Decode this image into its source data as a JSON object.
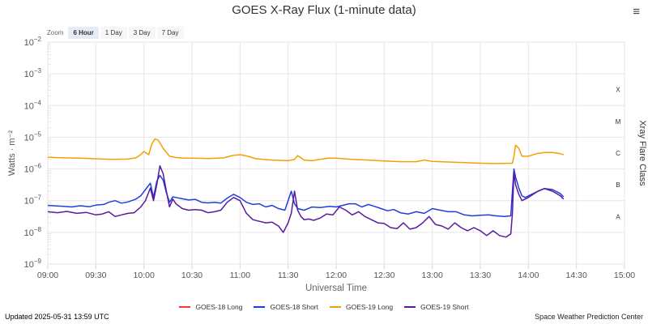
{
  "menu_icon": "≡",
  "zoom": {
    "label": "Zoom",
    "buttons": [
      "6 Hour",
      "1 Day",
      "3 Day",
      "7 Day"
    ],
    "active": "6 Hour"
  },
  "footer": {
    "updated": "Updated 2025-05-31 13:59 UTC",
    "credit": "Space Weather Prediction Center"
  },
  "chart_data": {
    "type": "line",
    "title": "GOES X-Ray Flux (1-minute data)",
    "xlabel": "Universal Time",
    "ylabel": "Watts · m⁻²",
    "y2label": "Xray Flare Class",
    "yscale": "log",
    "ylim_exp": [
      -9,
      -2
    ],
    "y_ticks": [
      {
        "exp": -2,
        "base": "10",
        "sup": "−2"
      },
      {
        "exp": -3,
        "base": "10",
        "sup": "−3"
      },
      {
        "exp": -4,
        "base": "10",
        "sup": "−4"
      },
      {
        "exp": -5,
        "base": "10",
        "sup": "−5"
      },
      {
        "exp": -6,
        "base": "10",
        "sup": "−6"
      },
      {
        "exp": -7,
        "base": "10",
        "sup": "−7"
      },
      {
        "exp": -8,
        "base": "10",
        "sup": "−8"
      },
      {
        "exp": -9,
        "base": "10",
        "sup": "−9"
      }
    ],
    "x_ticks": [
      "09:00",
      "09:30",
      "10:00",
      "10:30",
      "11:00",
      "11:30",
      "12:00",
      "12:30",
      "13:00",
      "13:30",
      "14:00",
      "14:30",
      "15:00"
    ],
    "xlim_minutes": [
      540,
      900
    ],
    "flare_classes": [
      {
        "label": "X",
        "exp": -3.5
      },
      {
        "label": "M",
        "exp": -4.5
      },
      {
        "label": "C",
        "exp": -5.5
      },
      {
        "label": "B",
        "exp": -6.5
      },
      {
        "label": "A",
        "exp": -7.5
      }
    ],
    "series": [
      {
        "name": "GOES-18 Long",
        "color": "#ff3333",
        "x": [],
        "log_flux": []
      },
      {
        "name": "GOES-18 Short",
        "color": "#1f3fdc",
        "x": [
          540,
          550,
          555,
          560,
          566,
          570,
          575,
          578,
          582,
          586,
          590,
          595,
          598,
          601,
          604,
          606,
          608,
          610,
          612,
          614,
          616,
          618,
          620,
          624,
          628,
          632,
          636,
          640,
          644,
          648,
          652,
          656,
          660,
          664,
          668,
          672,
          676,
          680,
          684,
          688,
          690,
          692,
          694,
          696,
          700,
          705,
          710,
          716,
          720,
          724,
          728,
          732,
          736,
          740,
          744,
          748,
          752,
          756,
          760,
          765,
          770,
          775,
          780,
          785,
          790,
          795,
          800,
          805,
          810,
          815,
          820,
          825,
          829,
          830,
          831,
          832,
          834,
          836,
          838,
          842,
          846,
          850,
          855,
          860,
          862
        ],
        "log_flux": [
          -7.15,
          -7.18,
          -7.2,
          -7.16,
          -7.19,
          -7.14,
          -7.12,
          -7.05,
          -7.0,
          -7.08,
          -7.04,
          -6.95,
          -6.85,
          -6.65,
          -6.45,
          -6.9,
          -6.4,
          -6.2,
          -6.35,
          -6.75,
          -7.05,
          -6.88,
          -6.9,
          -6.94,
          -6.98,
          -6.96,
          -7.05,
          -7.07,
          -7.05,
          -7.08,
          -6.92,
          -6.8,
          -6.9,
          -7.05,
          -7.12,
          -7.1,
          -7.2,
          -7.15,
          -7.25,
          -7.3,
          -7.0,
          -6.7,
          -7.1,
          -7.25,
          -7.3,
          -7.2,
          -7.22,
          -7.18,
          -7.2,
          -7.15,
          -7.1,
          -7.1,
          -7.2,
          -7.12,
          -7.18,
          -7.25,
          -7.32,
          -7.28,
          -7.38,
          -7.42,
          -7.35,
          -7.4,
          -7.25,
          -7.3,
          -7.35,
          -7.35,
          -7.45,
          -7.48,
          -7.46,
          -7.45,
          -7.48,
          -7.5,
          -7.48,
          -6.7,
          -6.0,
          -6.25,
          -6.6,
          -6.85,
          -6.9,
          -6.8,
          -6.7,
          -6.62,
          -6.65,
          -6.78,
          -6.88
        ]
      },
      {
        "name": "GOES-19 Long",
        "color": "#f5a000",
        "x": [
          540,
          550,
          560,
          570,
          580,
          590,
          595,
          598,
          600,
          603,
          605,
          607,
          609,
          612,
          616,
          620,
          625,
          630,
          640,
          650,
          655,
          660,
          665,
          670,
          680,
          690,
          694,
          696,
          698,
          700,
          705,
          710,
          715,
          720,
          730,
          740,
          750,
          760,
          770,
          775,
          780,
          790,
          800,
          810,
          820,
          830,
          831,
          832,
          834,
          836,
          840,
          845,
          850,
          855,
          860,
          862
        ],
        "log_flux": [
          -5.63,
          -5.65,
          -5.66,
          -5.68,
          -5.7,
          -5.69,
          -5.65,
          -5.55,
          -5.45,
          -5.55,
          -5.2,
          -5.05,
          -5.1,
          -5.35,
          -5.6,
          -5.64,
          -5.66,
          -5.66,
          -5.67,
          -5.65,
          -5.58,
          -5.55,
          -5.6,
          -5.68,
          -5.72,
          -5.74,
          -5.7,
          -5.58,
          -5.65,
          -5.72,
          -5.74,
          -5.7,
          -5.66,
          -5.66,
          -5.7,
          -5.72,
          -5.75,
          -5.77,
          -5.77,
          -5.72,
          -5.76,
          -5.78,
          -5.8,
          -5.82,
          -5.83,
          -5.82,
          -5.6,
          -5.25,
          -5.35,
          -5.6,
          -5.6,
          -5.52,
          -5.48,
          -5.48,
          -5.52,
          -5.55
        ]
      },
      {
        "name": "GOES-19 Short",
        "color": "#5a1a9e",
        "x": [
          540,
          546,
          552,
          558,
          564,
          570,
          574,
          578,
          582,
          586,
          590,
          594,
          598,
          601,
          604,
          606,
          608,
          610,
          612,
          614,
          616,
          618,
          620,
          624,
          628,
          632,
          636,
          640,
          644,
          648,
          652,
          656,
          660,
          664,
          668,
          672,
          676,
          680,
          684,
          687,
          690,
          692,
          694,
          696,
          698,
          700,
          703,
          706,
          710,
          714,
          718,
          722,
          726,
          730,
          734,
          738,
          742,
          746,
          750,
          754,
          758,
          762,
          766,
          770,
          774,
          778,
          782,
          786,
          790,
          794,
          798,
          802,
          806,
          810,
          814,
          818,
          822,
          826,
          829,
          830,
          831,
          832,
          834,
          836,
          840,
          846,
          850,
          855,
          860,
          862
        ],
        "log_flux": [
          -7.35,
          -7.38,
          -7.34,
          -7.4,
          -7.37,
          -7.45,
          -7.42,
          -7.35,
          -7.5,
          -7.45,
          -7.4,
          -7.38,
          -7.2,
          -7.0,
          -6.6,
          -7.0,
          -6.5,
          -5.9,
          -6.15,
          -6.7,
          -7.2,
          -6.95,
          -7.1,
          -7.25,
          -7.3,
          -7.28,
          -7.3,
          -7.38,
          -7.35,
          -7.3,
          -7.05,
          -6.9,
          -7.0,
          -7.4,
          -7.6,
          -7.65,
          -7.7,
          -7.68,
          -7.8,
          -8.0,
          -7.7,
          -7.4,
          -6.7,
          -7.3,
          -7.5,
          -7.6,
          -7.58,
          -7.62,
          -7.55,
          -7.42,
          -7.45,
          -7.2,
          -7.3,
          -7.45,
          -7.35,
          -7.5,
          -7.6,
          -7.7,
          -7.72,
          -7.85,
          -7.88,
          -7.7,
          -7.9,
          -7.85,
          -7.7,
          -7.5,
          -7.75,
          -7.8,
          -7.9,
          -7.7,
          -7.85,
          -7.95,
          -7.85,
          -7.95,
          -8.1,
          -7.95,
          -8.1,
          -8.15,
          -8.05,
          -7.4,
          -6.1,
          -6.5,
          -6.8,
          -7.0,
          -6.9,
          -6.7,
          -6.62,
          -6.7,
          -6.85,
          -6.95
        ]
      }
    ]
  }
}
